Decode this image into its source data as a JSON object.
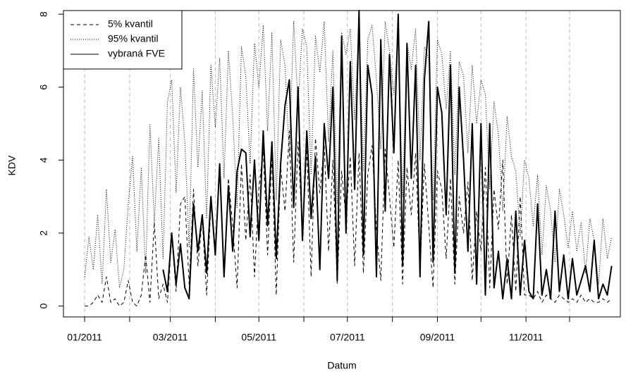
{
  "chart_data": {
    "type": "line",
    "xlabel": "Datum",
    "ylabel": "KDV",
    "x": [
      0,
      3,
      6,
      9,
      12,
      15,
      18,
      21,
      24,
      27,
      30,
      33,
      36,
      39,
      42,
      45,
      48,
      51,
      54,
      57,
      60,
      63,
      66,
      69,
      72,
      75,
      78,
      81,
      84,
      87,
      90,
      93,
      96,
      99,
      102,
      105,
      108,
      111,
      114,
      117,
      120,
      123,
      126,
      129,
      132,
      135,
      138,
      141,
      144,
      147,
      150,
      153,
      156,
      159,
      162,
      165,
      168,
      171,
      174,
      177,
      180,
      183,
      186,
      189,
      192,
      195,
      198,
      201,
      204,
      207,
      210,
      213,
      216,
      219,
      222,
      225,
      228,
      231,
      234,
      237,
      240,
      243,
      246,
      249,
      252,
      255,
      258,
      261,
      264,
      267,
      270,
      273,
      276,
      279,
      282,
      285,
      288,
      291,
      294,
      297,
      300,
      303,
      306,
      309,
      312,
      315,
      318,
      321,
      324,
      327,
      330,
      333,
      336,
      339,
      342,
      345,
      348,
      351,
      354,
      357,
      360,
      363
    ],
    "xlim": [
      -14.6,
      369
    ],
    "xticks": [
      {
        "value": 0,
        "label": "01/2011"
      },
      {
        "value": 59,
        "label": "03/2011"
      },
      {
        "value": 120,
        "label": "05/2011"
      },
      {
        "value": 181,
        "label": "07/2011"
      },
      {
        "value": 243,
        "label": "09/2011"
      },
      {
        "value": 304,
        "label": "11/2011"
      }
    ],
    "xminor": [
      31,
      90,
      151,
      212,
      273,
      334
    ],
    "ylim": [
      -0.3,
      8.1
    ],
    "yticks": [
      0,
      2,
      4,
      6,
      8
    ],
    "grid": true,
    "legend": "top-left",
    "series": [
      {
        "name": "5% kvantil",
        "color": "#000000",
        "dash": "dashed",
        "values": [
          0.0,
          0.0,
          0.1,
          0.3,
          0.1,
          0.8,
          0.1,
          0.2,
          0.0,
          0.1,
          0.7,
          0.1,
          0.0,
          0.3,
          1.4,
          0.1,
          2.3,
          0.2,
          0.6,
          0.1,
          1.9,
          0.4,
          2.8,
          3.0,
          0.6,
          3.2,
          1.1,
          2.4,
          0.3,
          2.8,
          1.5,
          3.7,
          0.9,
          3.5,
          2.2,
          0.5,
          3.9,
          1.8,
          3.6,
          0.8,
          3.2,
          4.3,
          1.4,
          4.1,
          0.3,
          3.8,
          2.6,
          4.8,
          1.2,
          4.5,
          2.0,
          4.3,
          0.8,
          4.6,
          3.1,
          4.4,
          1.5,
          4.0,
          0.6,
          3.7,
          2.4,
          4.1,
          1.1,
          4.2,
          0.9,
          3.6,
          4.4,
          2.1,
          0.7,
          4.3,
          3.0,
          1.6,
          4.0,
          0.6,
          3.8,
          2.5,
          4.2,
          1.0,
          3.9,
          2.2,
          0.5,
          3.7,
          3.2,
          1.3,
          3.5,
          0.6,
          3.0,
          2.0,
          3.4,
          0.7,
          2.6,
          1.5,
          3.8,
          0.5,
          3.2,
          2.1,
          4.0,
          0.6,
          2.5,
          0.4,
          3.0,
          0.3,
          0.3,
          0.2,
          0.4,
          0.1,
          0.3,
          0.2,
          0.1,
          0.3,
          0.2,
          0.1,
          0.2,
          0.1,
          0.3,
          0.1,
          0.2,
          0.1,
          0.1,
          0.2,
          0.1,
          0.2
        ]
      },
      {
        "name": "95% kvantil",
        "color": "#000000",
        "dash": "dotted",
        "values": [
          0.8,
          1.9,
          1.0,
          2.5,
          0.6,
          3.2,
          1.2,
          2.1,
          0.5,
          1.0,
          2.8,
          4.1,
          1.5,
          3.8,
          0.9,
          5.0,
          2.3,
          4.6,
          1.3,
          5.6,
          6.2,
          3.1,
          6.0,
          4.5,
          1.6,
          6.5,
          3.8,
          5.9,
          2.4,
          6.6,
          4.9,
          6.8,
          3.5,
          7.0,
          5.2,
          2.7,
          7.1,
          6.3,
          3.9,
          7.2,
          6.0,
          7.7,
          4.8,
          7.5,
          2.9,
          7.3,
          6.6,
          4.1,
          7.8,
          5.5,
          7.6,
          7.1,
          3.6,
          7.4,
          6.4,
          7.8,
          4.5,
          7.0,
          2.8,
          7.5,
          6.9,
          7.6,
          5.1,
          7.9,
          3.7,
          7.3,
          7.7,
          6.2,
          4.3,
          7.8,
          7.0,
          5.8,
          7.5,
          3.0,
          7.2,
          6.5,
          7.6,
          4.0,
          7.1,
          6.8,
          2.9,
          7.3,
          6.9,
          5.4,
          7.0,
          3.6,
          6.7,
          6.3,
          4.2,
          6.6,
          5.0,
          6.2,
          5.8,
          3.2,
          5.6,
          4.7,
          2.6,
          5.2,
          4.1,
          3.7,
          1.9,
          4.0,
          3.5,
          2.2,
          3.6,
          1.4,
          3.3,
          2.6,
          1.2,
          3.2,
          2.5,
          1.6,
          2.6,
          1.5,
          2.3,
          0.9,
          2.4,
          1.8,
          0.6,
          2.4,
          1.3,
          1.9
        ]
      },
      {
        "name": "vybraná FVE",
        "color": "#000000",
        "dash": "solid",
        "values": [
          null,
          null,
          null,
          null,
          null,
          null,
          null,
          null,
          null,
          null,
          null,
          null,
          null,
          null,
          null,
          null,
          null,
          null,
          1.0,
          0.4,
          2.0,
          0.6,
          1.7,
          0.5,
          0.2,
          2.8,
          1.5,
          2.5,
          0.9,
          3.0,
          1.4,
          3.9,
          0.8,
          3.3,
          1.5,
          3.7,
          4.3,
          4.2,
          1.9,
          4.0,
          1.8,
          4.8,
          2.2,
          4.5,
          1.3,
          3.9,
          5.5,
          6.2,
          2.7,
          6.0,
          1.8,
          4.8,
          2.4,
          4.1,
          1.0,
          5.0,
          3.5,
          6.0,
          0.7,
          7.4,
          2.0,
          6.7,
          3.2,
          8.1,
          1.4,
          6.6,
          5.8,
          0.8,
          7.3,
          2.6,
          6.9,
          4.2,
          8.0,
          1.1,
          7.2,
          3.5,
          6.6,
          0.8,
          6.2,
          7.8,
          1.2,
          6.0,
          5.3,
          2.5,
          6.6,
          0.9,
          6.0,
          4.0,
          1.5,
          5.0,
          0.6,
          5.0,
          0.3,
          5.0,
          0.5,
          1.5,
          0.2,
          1.3,
          0.2,
          2.6,
          0.3,
          1.8,
          0.4,
          0.2,
          2.8,
          0.3,
          1.0,
          0.2,
          2.6,
          0.4,
          1.4,
          0.2,
          1.3,
          0.3,
          0.7,
          1.1,
          0.4,
          1.8,
          0.2,
          0.6,
          0.3,
          1.1
        ]
      }
    ]
  }
}
